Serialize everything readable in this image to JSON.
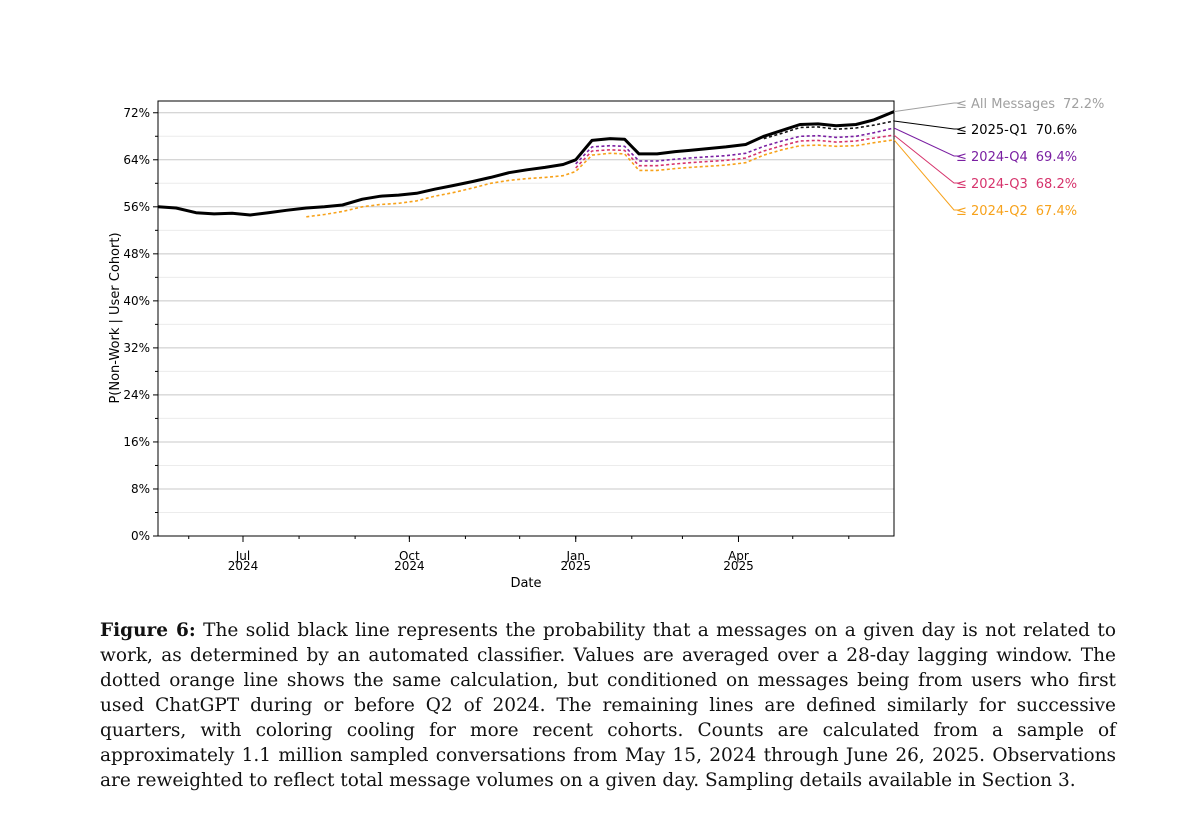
{
  "chart_data": {
    "type": "line",
    "xlabel": "Date",
    "ylabel": "P(Non-Work | User Cohort)",
    "ylim": [
      0,
      74
    ],
    "y_ticks": [
      {
        "value": 0,
        "label": "0%"
      },
      {
        "value": 8,
        "label": "8%"
      },
      {
        "value": 16,
        "label": "16%"
      },
      {
        "value": 24,
        "label": "24%"
      },
      {
        "value": 32,
        "label": "32%"
      },
      {
        "value": 40,
        "label": "40%"
      },
      {
        "value": 48,
        "label": "48%"
      },
      {
        "value": 56,
        "label": "56%"
      },
      {
        "value": 64,
        "label": "64%"
      },
      {
        "value": 72,
        "label": "72%"
      }
    ],
    "x_range": [
      "2024-05-15",
      "2025-06-26"
    ],
    "x_ticks": [
      {
        "date": "2024-07-01",
        "line1": "Jul",
        "line2": "2024"
      },
      {
        "date": "2024-10-01",
        "line1": "Oct",
        "line2": "2024"
      },
      {
        "date": "2025-01-01",
        "line1": "Jan",
        "line2": "2025"
      },
      {
        "date": "2025-04-01",
        "line1": "Apr",
        "line2": "2025"
      }
    ],
    "grid": true,
    "dates": [
      "2024-05-15",
      "2024-05-25",
      "2024-06-05",
      "2024-06-15",
      "2024-06-25",
      "2024-07-05",
      "2024-07-15",
      "2024-07-25",
      "2024-08-05",
      "2024-08-15",
      "2024-08-25",
      "2024-09-05",
      "2024-09-15",
      "2024-09-25",
      "2024-10-05",
      "2024-10-15",
      "2024-10-25",
      "2024-11-05",
      "2024-11-15",
      "2024-11-25",
      "2024-12-05",
      "2024-12-15",
      "2024-12-25",
      "2025-01-01",
      "2025-01-10",
      "2025-01-20",
      "2025-01-28",
      "2025-02-05",
      "2025-02-15",
      "2025-02-25",
      "2025-03-05",
      "2025-03-15",
      "2025-03-25",
      "2025-04-05",
      "2025-04-15",
      "2025-04-25",
      "2025-05-05",
      "2025-05-15",
      "2025-05-25",
      "2025-06-05",
      "2025-06-15",
      "2025-06-26"
    ],
    "series": [
      {
        "name": "All Messages",
        "label": "≤ All Messages",
        "value_label": "72.2%",
        "color": "#000000",
        "style": "solid",
        "values": [
          56.0,
          55.8,
          55.0,
          54.8,
          54.9,
          54.6,
          55.0,
          55.4,
          55.8,
          56.0,
          56.3,
          57.3,
          57.8,
          58.0,
          58.3,
          59.0,
          59.6,
          60.3,
          61.0,
          61.8,
          62.3,
          62.7,
          63.2,
          64.0,
          67.3,
          67.6,
          67.5,
          65.0,
          65.0,
          65.4,
          65.6,
          65.9,
          66.2,
          66.6,
          68.0,
          69.0,
          70.0,
          70.1,
          69.8,
          70.0,
          70.8,
          72.2
        ]
      },
      {
        "name": "2025-Q1",
        "label": "≤ 2025-Q1",
        "value_label": "70.6%",
        "color": "#111111",
        "style": "dashed",
        "values": [
          null,
          null,
          null,
          null,
          null,
          null,
          null,
          null,
          null,
          null,
          null,
          null,
          null,
          null,
          null,
          null,
          null,
          null,
          null,
          null,
          null,
          null,
          null,
          null,
          null,
          null,
          null,
          null,
          null,
          null,
          null,
          null,
          null,
          null,
          67.6,
          68.5,
          69.5,
          69.6,
          69.2,
          69.4,
          69.9,
          70.6
        ]
      },
      {
        "name": "2024-Q4",
        "label": "≤ 2024-Q4",
        "value_label": "69.4%",
        "color": "#7a1fa2",
        "style": "dashed",
        "values": [
          null,
          null,
          null,
          null,
          null,
          null,
          null,
          null,
          null,
          null,
          null,
          null,
          null,
          null,
          null,
          null,
          null,
          null,
          null,
          null,
          null,
          null,
          null,
          63.3,
          66.2,
          66.4,
          66.3,
          63.8,
          63.8,
          64.1,
          64.3,
          64.5,
          64.7,
          65.1,
          66.3,
          67.2,
          68.0,
          68.1,
          67.8,
          68.0,
          68.6,
          69.4
        ]
      },
      {
        "name": "2024-Q3",
        "label": "≤ 2024-Q3",
        "value_label": "68.2%",
        "color": "#d6336c",
        "style": "dashed",
        "values": [
          null,
          null,
          null,
          null,
          null,
          null,
          null,
          null,
          null,
          null,
          null,
          null,
          null,
          null,
          null,
          null,
          null,
          null,
          null,
          null,
          null,
          null,
          null,
          62.6,
          65.5,
          65.7,
          65.6,
          63.0,
          63.0,
          63.3,
          63.5,
          63.7,
          63.9,
          64.3,
          65.5,
          66.4,
          67.2,
          67.3,
          67.0,
          67.2,
          67.7,
          68.2
        ]
      },
      {
        "name": "2024-Q2",
        "label": "≤ 2024-Q2",
        "value_label": "67.4%",
        "color": "#f7a21b",
        "style": "dashed",
        "values": [
          null,
          null,
          null,
          null,
          null,
          null,
          null,
          null,
          54.3,
          54.7,
          55.2,
          56.0,
          56.4,
          56.6,
          57.0,
          57.8,
          58.4,
          59.2,
          60.0,
          60.5,
          60.8,
          61.0,
          61.3,
          62.0,
          64.8,
          65.1,
          65.0,
          62.2,
          62.2,
          62.5,
          62.7,
          62.9,
          63.1,
          63.5,
          64.8,
          65.7,
          66.4,
          66.5,
          66.3,
          66.4,
          66.9,
          67.4
        ]
      }
    ]
  },
  "caption": {
    "figure_label": "Figure 6:",
    "text": "The solid black line represents the probability that a messages on a given day is not related to work, as determined by an automated classifier. Values are averaged over a 28-day lagging window. The dotted orange line shows the same calculation, but conditioned on messages being from users who first used ChatGPT during or before Q2 of 2024. The remaining lines are defined similarly for successive quarters, with coloring cooling for more recent cohorts. Counts are calculated from a sample of approximately 1.1 million sampled conversations from May 15, 2024 through June 26, 2025. Observations are reweighted to reflect total message volumes on a given day. Sampling details available in Section 3."
  }
}
